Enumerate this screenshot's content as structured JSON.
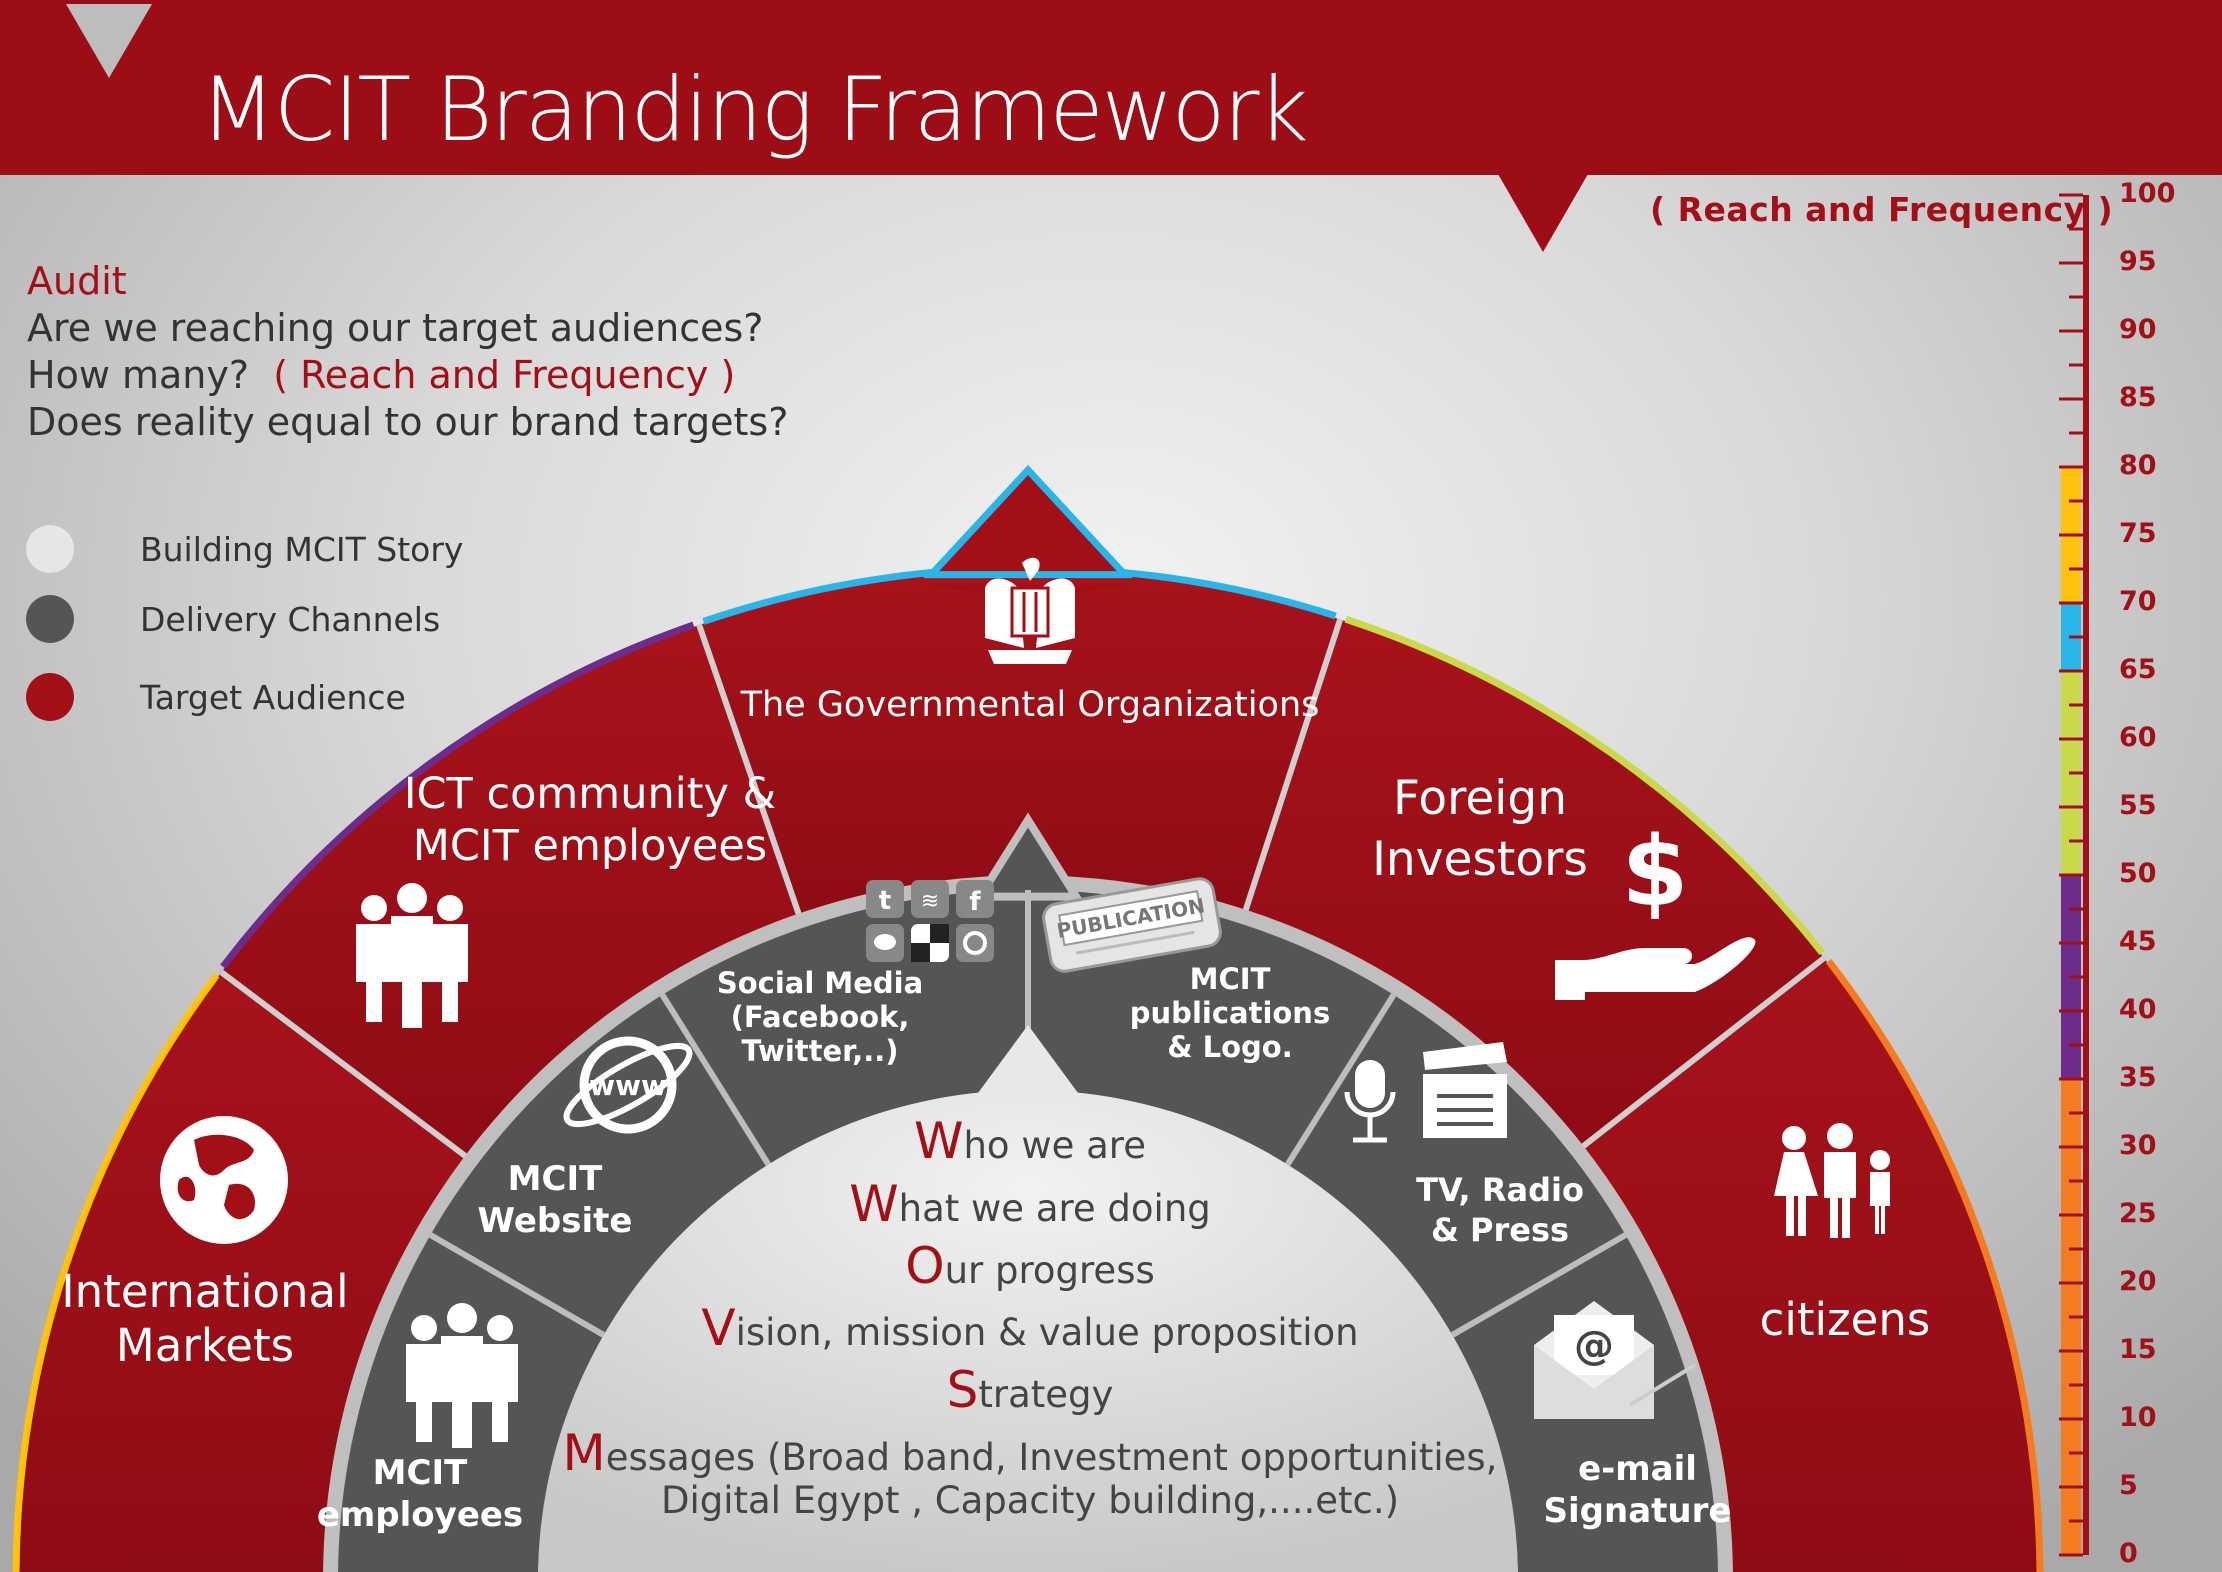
{
  "title": "MCIT Branding Framework",
  "audit": {
    "heading": "Audit",
    "line1": "Are we reaching our target audiences?",
    "line2_prefix": "How many?",
    "line2_highlight": "( Reach and Frequency )",
    "line3": "Does  reality equal to our brand targets?"
  },
  "legend": [
    {
      "label": "Building MCIT Story",
      "color": "#e6e6e6"
    },
    {
      "label": "Delivery Channels",
      "color": "#555555"
    },
    {
      "label": "Target Audience",
      "color": "#a20f17"
    }
  ],
  "scale": {
    "label": "( Reach and Frequency )",
    "ticks": [
      "100",
      "95",
      "90",
      "85",
      "80",
      "75",
      "70",
      "65",
      "60",
      "55",
      "50",
      "45",
      "40",
      "35",
      "30",
      "25",
      "20",
      "15",
      "10",
      "5",
      "0"
    ],
    "segments": [
      {
        "from": 0,
        "to": 35,
        "color": "#f47b20"
      },
      {
        "from": 35,
        "to": 50,
        "color": "#6d2b8c"
      },
      {
        "from": 50,
        "to": 65,
        "color": "#c9d94a"
      },
      {
        "from": 65,
        "to": 70,
        "color": "#2ab5e8"
      },
      {
        "from": 70,
        "to": 80,
        "color": "#ffc20e"
      }
    ]
  },
  "audiences": {
    "international": {
      "line1": "International",
      "line2": "Markets",
      "icon": "globe-icon",
      "arc_color": "#ffc20e"
    },
    "ict": {
      "line1": "ICT community &",
      "line2": "MCIT employees",
      "icon": "business-people-icon",
      "arc_color": "#6d2b8c"
    },
    "gov": {
      "line1": "The Governmental Organizations",
      "icon": "eagle-emblem-icon",
      "arc_color": "#2ab5e8"
    },
    "foreign": {
      "line1": "Foreign",
      "line2": "Investors",
      "icon": "dollar-hand-icon",
      "arc_color": "#c9d94a"
    },
    "citizens": {
      "line1": "citizens",
      "icon": "family-icon",
      "arc_color": "#f47b20"
    }
  },
  "channels": {
    "employees": {
      "line1": "MCIT",
      "line2": "employees",
      "icon": "people-group-icon"
    },
    "website": {
      "line1": "MCIT",
      "line2": "Website",
      "icon": "www-globe-icon"
    },
    "social": {
      "line1": "Social Media",
      "line2": "(Facebook,",
      "line3": "Twitter,..)",
      "icon": "social-icons-grid"
    },
    "publications": {
      "line1": "MCIT",
      "line2": "publications",
      "line3": "& Logo.",
      "icon": "newspaper-icon",
      "badge": "PUBLICATION"
    },
    "tv": {
      "line1": "TV, Radio",
      "line2": "& Press",
      "icon": "microphone-clapper-icon"
    },
    "email": {
      "line1": "e-mail",
      "line2": "Signature",
      "icon": "email-envelope-icon"
    }
  },
  "story": [
    {
      "cap": "W",
      "rest": "ho we are"
    },
    {
      "cap": "W",
      "rest": "hat we are doing"
    },
    {
      "cap": "O",
      "rest": "ur progress"
    },
    {
      "cap": "V",
      "rest": "ision, mission & value proposition"
    },
    {
      "cap": "S",
      "rest": "trategy"
    },
    {
      "cap": "M",
      "rest": "essages (Broad band, Investment opportunities,",
      "line2": "Digital Egypt , Capacity building,....etc.)"
    }
  ]
}
